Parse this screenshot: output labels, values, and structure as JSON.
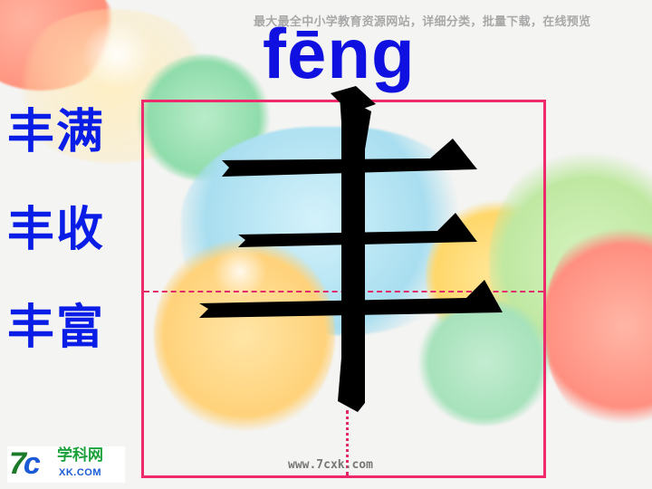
{
  "header": {
    "text": "最大最全中小学教育资源网站，详细分类，批量下载，在线预览"
  },
  "pinyin": "fēng",
  "main_character": "丰",
  "words": [
    "丰满",
    "丰收",
    "丰富"
  ],
  "watermark": "www.7cxk.com",
  "logo": {
    "mark_main": "7",
    "mark_c": "c",
    "name": "学科网",
    "url": "XK.COM"
  },
  "colors": {
    "word_blue": "#0a1de6",
    "pinyin_blue": "#1010e0",
    "grid_pink": "#ef2a6c"
  }
}
